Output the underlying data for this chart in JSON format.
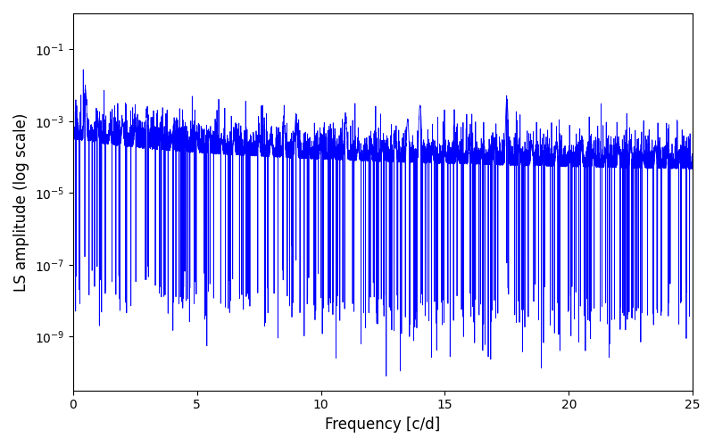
{
  "title": "",
  "xlabel": "Frequency [c/d]",
  "ylabel": "LS amplitude (log scale)",
  "line_color": "#0000ff",
  "line_width": 0.6,
  "xlim": [
    0,
    25
  ],
  "ylim_log": [
    -10.5,
    0
  ],
  "yscale": "log",
  "background_color": "#ffffff",
  "figsize": [
    8.0,
    5.0
  ],
  "dpi": 100,
  "seed": 42,
  "n_points": 8000
}
